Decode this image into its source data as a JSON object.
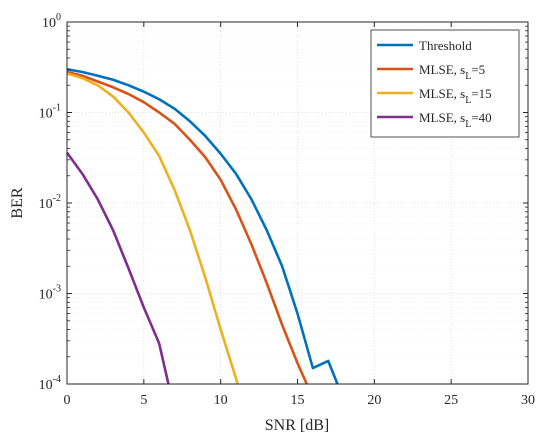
{
  "chart_data": {
    "type": "line",
    "title": "",
    "xlabel": "SNR [dB]",
    "ylabel": "BER",
    "xlim": [
      0,
      30
    ],
    "ylim": [
      0.0001,
      1
    ],
    "yscale": "log",
    "grid": true,
    "legend_position": "top-right",
    "x_ticks": [
      0,
      5,
      10,
      15,
      20,
      25,
      30
    ],
    "x_tick_labels": [
      "0",
      "5",
      "10",
      "15",
      "20",
      "25",
      "30"
    ],
    "y_ticks": [
      1,
      0.1,
      0.01,
      0.001,
      0.0001
    ],
    "y_tick_labels": [
      {
        "base": "10",
        "exp": "0"
      },
      {
        "base": "10",
        "exp": "-1"
      },
      {
        "base": "10",
        "exp": "-2"
      },
      {
        "base": "10",
        "exp": "-3"
      },
      {
        "base": "10",
        "exp": "-4"
      }
    ],
    "series": [
      {
        "label_main": "Threshold",
        "label_sub": "",
        "label_tail": "",
        "color": "#0072BD",
        "x": [
          0,
          1,
          2,
          3,
          4,
          5,
          6,
          7,
          8,
          9,
          10,
          11,
          12,
          13,
          14,
          15,
          16,
          17,
          17.6
        ],
        "y": [
          0.3,
          0.28,
          0.255,
          0.23,
          0.2,
          0.17,
          0.14,
          0.11,
          0.08,
          0.055,
          0.035,
          0.021,
          0.011,
          0.005,
          0.002,
          0.0006,
          0.00015,
          0.00018,
          0.0001
        ]
      },
      {
        "label_main": "MLSE, s",
        "label_sub": "L",
        "label_tail": "=5",
        "color": "#D95319",
        "x": [
          0,
          1,
          2,
          3,
          4,
          5,
          6,
          7,
          8,
          9,
          10,
          11,
          12,
          13,
          14,
          15,
          15.6
        ],
        "y": [
          0.28,
          0.255,
          0.22,
          0.19,
          0.16,
          0.13,
          0.1,
          0.075,
          0.05,
          0.032,
          0.018,
          0.0085,
          0.0035,
          0.0013,
          0.00045,
          0.00017,
          0.0001
        ]
      },
      {
        "label_main": "MLSE, s",
        "label_sub": "L",
        "label_tail": "=15",
        "color": "#EDB120",
        "x": [
          0,
          1,
          2,
          3,
          4,
          5,
          6,
          7,
          8,
          9,
          10,
          11,
          11.1
        ],
        "y": [
          0.27,
          0.24,
          0.2,
          0.15,
          0.1,
          0.06,
          0.033,
          0.014,
          0.005,
          0.0015,
          0.0004,
          0.000115,
          0.0001
        ]
      },
      {
        "label_main": "MLSE, s",
        "label_sub": "L",
        "label_tail": "=40",
        "color": "#7E2F8E",
        "x": [
          0,
          1,
          2,
          3,
          4,
          5,
          6,
          6.6
        ],
        "y": [
          0.036,
          0.021,
          0.011,
          0.005,
          0.0019,
          0.0007,
          0.00028,
          0.0001
        ]
      }
    ]
  }
}
